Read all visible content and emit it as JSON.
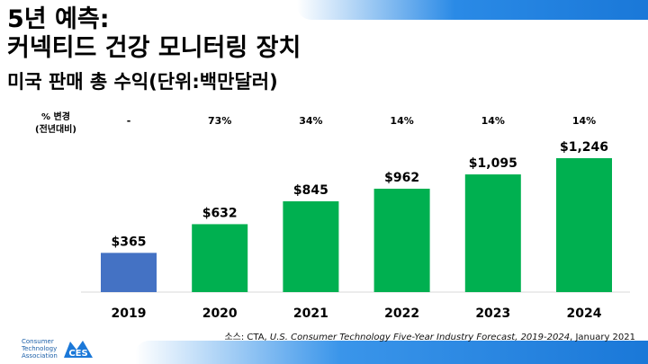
{
  "title": {
    "line1": "5년 예측:",
    "line2": "커넥티드 건강 모니터링 장치",
    "subtitle": "미국 판매 총 수익(단위:백만달러)"
  },
  "pct_change": {
    "label_line1": "% 변경",
    "label_line2": "(전년대비)",
    "values": [
      "-",
      "73%",
      "34%",
      "14%",
      "14%",
      "14%"
    ]
  },
  "chart_data": {
    "type": "bar",
    "title": "미국 판매 총 수익(단위:백만달러)",
    "categories": [
      "2019",
      "2020",
      "2021",
      "2022",
      "2023",
      "2024"
    ],
    "values": [
      365,
      632,
      845,
      962,
      1095,
      1246
    ],
    "value_labels": [
      "$365",
      "$632",
      "$845",
      "$962",
      "$1,095",
      "$1,246"
    ],
    "ylim": [
      0,
      1300
    ],
    "grid": false,
    "legend": "none",
    "colors": [
      "#4472c4",
      "#00b050",
      "#00b050",
      "#00b050",
      "#00b050",
      "#00b050"
    ]
  },
  "source": {
    "prefix": "소스: ",
    "text1": "CTA, ",
    "italic": "U.S. Consumer Technology Five-Year Industry Forecast, 2019-2024",
    "text2": ", January 2021"
  },
  "logo": {
    "cta_line1": "Consumer",
    "cta_line2": "Technology",
    "cta_line3": "Association",
    "ces_text": "CES",
    "brand_color": "#1b5fa8"
  }
}
